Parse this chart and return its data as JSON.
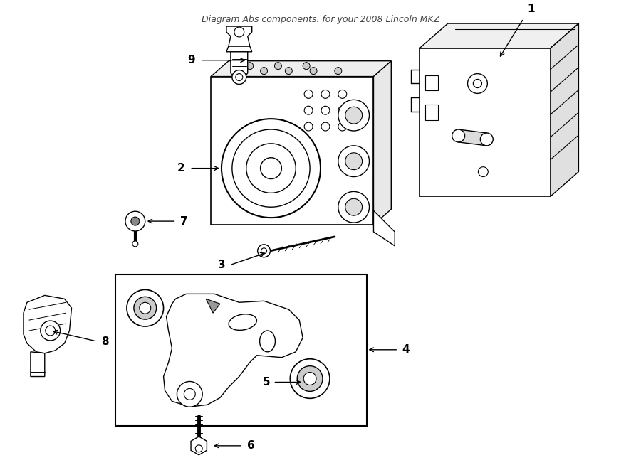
{
  "title": "Diagram Abs components. for your 2008 Lincoln MKZ",
  "background": "#ffffff",
  "line_color": "#000000",
  "fig_width": 9.0,
  "fig_height": 6.61,
  "dpi": 100
}
